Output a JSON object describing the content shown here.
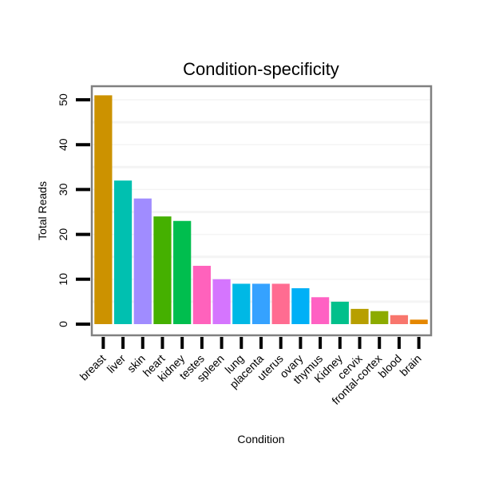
{
  "chart_data": {
    "type": "bar",
    "title": "Condition-specificity",
    "xlabel": "Condition",
    "ylabel": "Total Reads",
    "ylim": [
      0,
      55
    ],
    "yticks": [
      0,
      10,
      20,
      30,
      40,
      50
    ],
    "grid": true,
    "categories": [
      "breast",
      "liver",
      "skin",
      "heart",
      "kidney",
      "testes",
      "spleen",
      "lung",
      "placenta",
      "uterus",
      "ovary",
      "thymus",
      "Kidney",
      "cervix",
      "frontal-cortex",
      "blood",
      "brain"
    ],
    "values": [
      51,
      32,
      28,
      24,
      23,
      13,
      10,
      9,
      9,
      9,
      8,
      6,
      5,
      3.4,
      2.9,
      2,
      1
    ],
    "colors": [
      "#CC9200",
      "#00C0B0",
      "#A08CFF",
      "#45B000",
      "#00BE4E",
      "#FF62BC",
      "#D575FE",
      "#00B8E5",
      "#35A2FF",
      "#FF6C91",
      "#00B0F6",
      "#FF61C3",
      "#00C08B",
      "#B79F00",
      "#8CAB00",
      "#F8766D",
      "#E58700"
    ]
  }
}
